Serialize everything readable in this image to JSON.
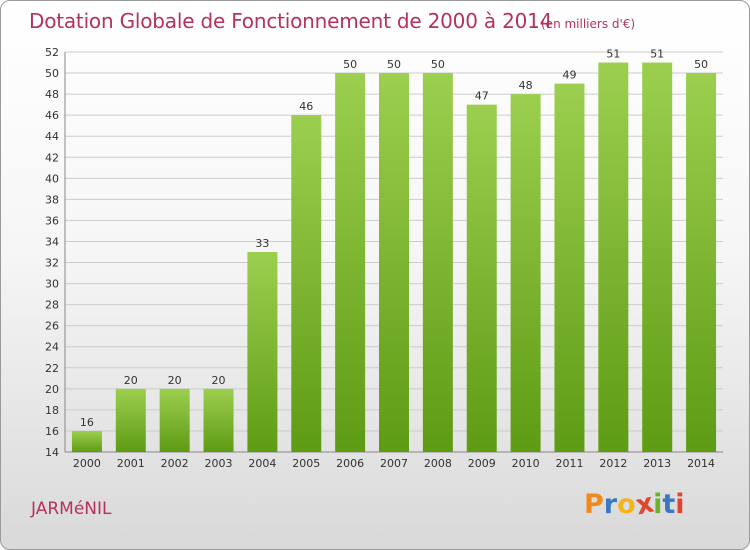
{
  "header": {
    "title": "Dotation Globale de Fonctionnement de 2000 à 2014",
    "subtitle": "(en milliers d'€)"
  },
  "footer": {
    "location": "JARMéNIL",
    "logo_letters": [
      "P",
      "r",
      "o",
      "x",
      "i",
      "t",
      "i"
    ],
    "logo_colors": [
      "#f08a1d",
      "#3a78c2",
      "#f2b51b",
      "#e0452d",
      "#6bb12b",
      "#3a78c2",
      "#e0452d"
    ]
  },
  "colors": {
    "bar_top": "#9ccf4f",
    "bar_bottom": "#5e9b14",
    "grid": "#cccccc",
    "accent": "#b5315f"
  },
  "chart_data": {
    "type": "bar",
    "categories": [
      "2000",
      "2001",
      "2002",
      "2003",
      "2004",
      "2005",
      "2006",
      "2007",
      "2008",
      "2009",
      "2010",
      "2011",
      "2012",
      "2013",
      "2014"
    ],
    "values": [
      16,
      20,
      20,
      20,
      33,
      46,
      50,
      50,
      50,
      47,
      48,
      49,
      51,
      51,
      50
    ],
    "title": "Dotation Globale de Fonctionnement de 2000 à 2014",
    "subtitle": "(en milliers d'€)",
    "xlabel": "",
    "ylabel": "",
    "ylim": [
      14,
      52
    ],
    "yticks": [
      14,
      16,
      18,
      20,
      22,
      24,
      26,
      28,
      30,
      32,
      34,
      36,
      38,
      40,
      42,
      44,
      46,
      48,
      50,
      52
    ],
    "grid": true,
    "legend": "none"
  }
}
